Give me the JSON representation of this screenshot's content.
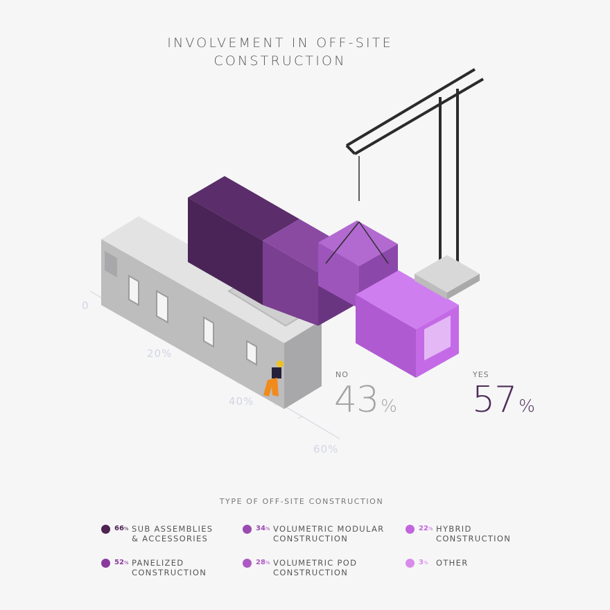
{
  "title": "INVOLVEMENT IN OFF-SITE\nCONSTRUCTION",
  "chart_data": [
    {
      "type": "bar",
      "categories": [
        "NO",
        "YES"
      ],
      "values": [
        43,
        57
      ],
      "value_suffix": "%",
      "axis_ticks": [
        "0",
        "20%",
        "40%",
        "60%"
      ],
      "ylim": [
        0,
        60
      ],
      "colors": {
        "NO": "#a3a3a3",
        "YES": "#4e2d58"
      }
    },
    {
      "type": "table",
      "title": "TYPE OF OFF-SITE CONSTRUCTION",
      "items": [
        {
          "pct": "66",
          "label": "SUB ASSEMBLIES\n& ACCESSORIES",
          "color": "#4f2352"
        },
        {
          "pct": "52",
          "label": "PANELIZED\nCONSTRUCTION",
          "color": "#8a3a9c"
        },
        {
          "pct": "34",
          "label": "VOLUMETRIC MODULAR\nCONSTRUCTION",
          "color": "#9a4ab0"
        },
        {
          "pct": "28",
          "label": "VOLUMETRIC POD\nCONSTRUCTION",
          "color": "#ad5ac4"
        },
        {
          "pct": "22",
          "label": "HYBRID\nCONSTRUCTION",
          "color": "#c266dd"
        },
        {
          "pct": "3",
          "label": "OTHER",
          "color": "#d98bea"
        }
      ]
    }
  ],
  "pct_symbol": "%"
}
